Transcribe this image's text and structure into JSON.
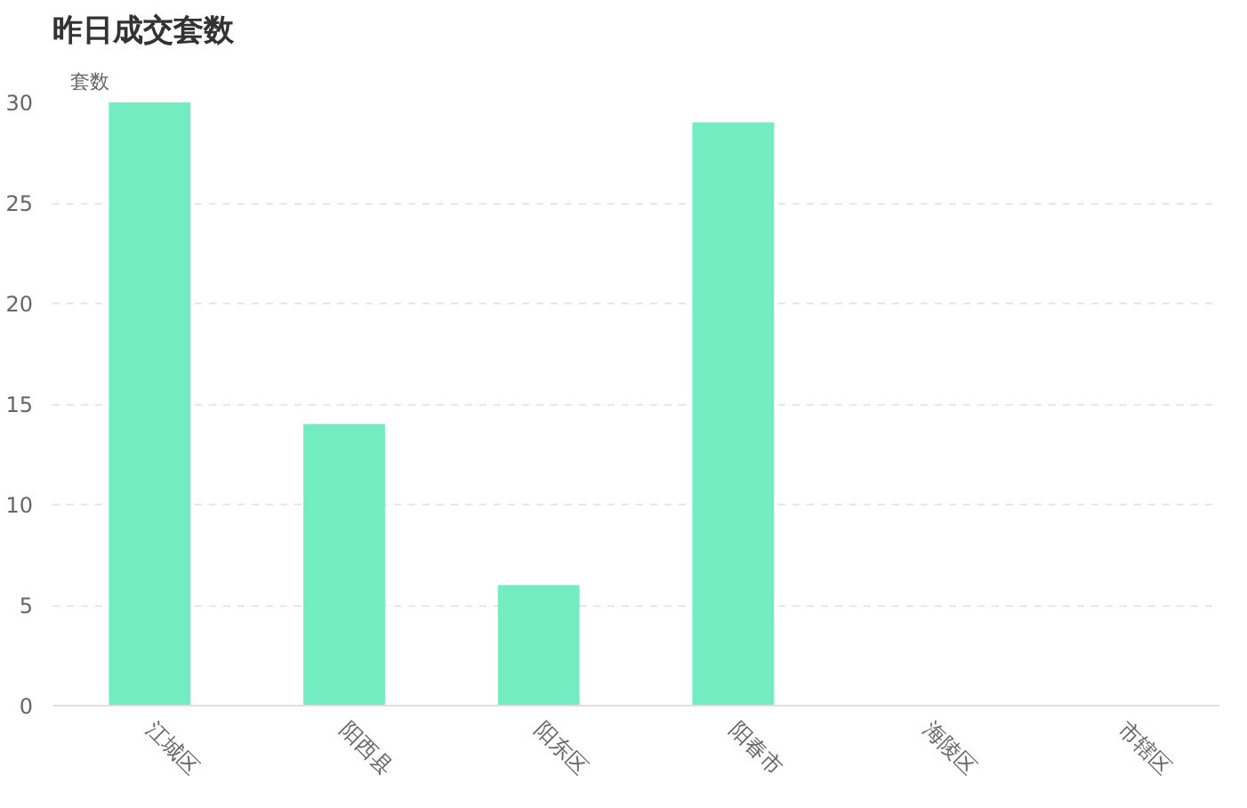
{
  "chart_data": {
    "type": "bar",
    "title": "昨日成交套数",
    "ylabel": "套数",
    "categories": [
      "江城区",
      "阳西县",
      "阳东区",
      "阳春市",
      "海陵区",
      "市辖区"
    ],
    "values": [
      30,
      14,
      6,
      29,
      0,
      0
    ],
    "color": "#72ecc0",
    "ylim": [
      0,
      30
    ],
    "yticks": [
      0,
      5,
      10,
      15,
      20,
      25,
      30
    ],
    "grid": "y"
  }
}
